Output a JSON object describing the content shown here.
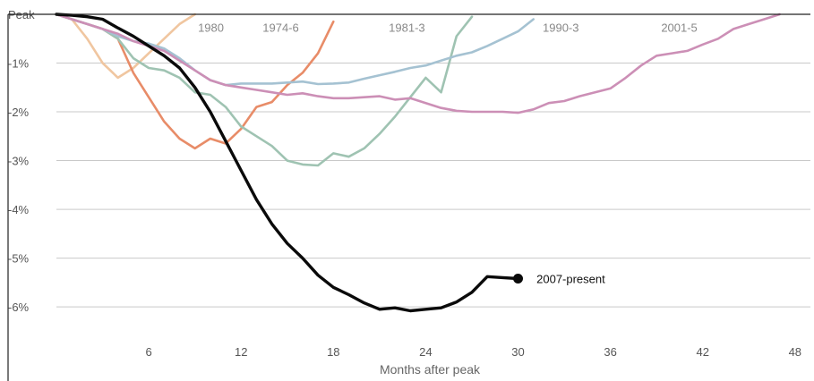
{
  "chart_data": {
    "type": "line",
    "title": "",
    "xlabel": "Months after peak",
    "ylabel": "",
    "xlim": [
      0,
      49
    ],
    "ylim": [
      -6.75,
      0
    ],
    "grid": true,
    "x_ticks": [
      {
        "value": 6,
        "label": "6"
      },
      {
        "value": 12,
        "label": "12"
      },
      {
        "value": 18,
        "label": "18"
      },
      {
        "value": 24,
        "label": "24"
      },
      {
        "value": 30,
        "label": "30"
      },
      {
        "value": 36,
        "label": "36"
      },
      {
        "value": 42,
        "label": "42"
      },
      {
        "value": 48,
        "label": "48"
      }
    ],
    "y_ticks": [
      {
        "value": 0,
        "label": "Peak"
      },
      {
        "value": -1,
        "label": "-1%"
      },
      {
        "value": -2,
        "label": "-2%"
      },
      {
        "value": -3,
        "label": "-3%"
      },
      {
        "value": -4,
        "label": "-4%"
      },
      {
        "value": -5,
        "label": "-5%"
      },
      {
        "value": -6,
        "label": "-6%"
      }
    ],
    "series": [
      {
        "name": "1980",
        "color": "#f0c6a0",
        "x": [
          0,
          1,
          2,
          3,
          4,
          5,
          6,
          7,
          8,
          9
        ],
        "y": [
          0,
          -0.1,
          -0.5,
          -1.0,
          -1.3,
          -1.1,
          -0.8,
          -0.5,
          -0.2,
          0.0
        ]
      },
      {
        "name": "1974-6",
        "color": "#e88c68",
        "x": [
          0,
          1,
          2,
          3,
          4,
          5,
          6,
          7,
          8,
          9,
          10,
          11,
          12,
          13,
          14,
          15,
          16,
          17,
          18
        ],
        "y": [
          0,
          -0.1,
          -0.2,
          -0.3,
          -0.5,
          -1.2,
          -1.7,
          -2.2,
          -2.55,
          -2.75,
          -2.55,
          -2.65,
          -2.35,
          -1.9,
          -1.8,
          -1.45,
          -1.2,
          -0.8,
          -0.15
        ]
      },
      {
        "name": "1981-3",
        "color": "#9fc3b2",
        "x": [
          0,
          1,
          2,
          3,
          4,
          5,
          6,
          7,
          8,
          9,
          10,
          11,
          12,
          13,
          14,
          15,
          16,
          17,
          18,
          19,
          20,
          21,
          22,
          23,
          24,
          25,
          26,
          27
        ],
        "y": [
          0,
          -0.1,
          -0.2,
          -0.3,
          -0.5,
          -0.9,
          -1.1,
          -1.15,
          -1.3,
          -1.6,
          -1.65,
          -1.9,
          -2.3,
          -2.5,
          -2.7,
          -3.0,
          -3.08,
          -3.1,
          -2.85,
          -2.92,
          -2.75,
          -2.45,
          -2.1,
          -1.7,
          -1.3,
          -1.6,
          -0.45,
          -0.05
        ]
      },
      {
        "name": "1990-3",
        "color": "#a5c2d2",
        "x": [
          0,
          1,
          2,
          3,
          4,
          5,
          6,
          7,
          8,
          9,
          10,
          11,
          12,
          13,
          14,
          15,
          16,
          17,
          18,
          19,
          20,
          21,
          22,
          23,
          24,
          25,
          26,
          27,
          28,
          29,
          30,
          31
        ],
        "y": [
          0,
          -0.1,
          -0.2,
          -0.3,
          -0.45,
          -0.55,
          -0.6,
          -0.7,
          -0.9,
          -1.15,
          -1.35,
          -1.45,
          -1.42,
          -1.42,
          -1.42,
          -1.4,
          -1.38,
          -1.43,
          -1.42,
          -1.4,
          -1.32,
          -1.25,
          -1.18,
          -1.1,
          -1.05,
          -0.95,
          -0.85,
          -0.78,
          -0.65,
          -0.5,
          -0.35,
          -0.1
        ]
      },
      {
        "name": "2001-5",
        "color": "#cc8fb6",
        "x": [
          0,
          1,
          2,
          3,
          4,
          5,
          6,
          7,
          8,
          9,
          10,
          11,
          12,
          13,
          14,
          15,
          16,
          17,
          18,
          19,
          20,
          21,
          22,
          23,
          24,
          25,
          26,
          27,
          28,
          29,
          30,
          31,
          32,
          33,
          34,
          35,
          36,
          37,
          38,
          39,
          40,
          41,
          42,
          43,
          44,
          45,
          46,
          47
        ],
        "y": [
          0,
          -0.1,
          -0.2,
          -0.3,
          -0.4,
          -0.55,
          -0.65,
          -0.75,
          -0.95,
          -1.15,
          -1.35,
          -1.45,
          -1.5,
          -1.55,
          -1.6,
          -1.65,
          -1.62,
          -1.68,
          -1.72,
          -1.72,
          -1.7,
          -1.68,
          -1.75,
          -1.72,
          -1.82,
          -1.92,
          -1.98,
          -2.0,
          -2.0,
          -2.0,
          -2.02,
          -1.95,
          -1.82,
          -1.78,
          -1.68,
          -1.6,
          -1.52,
          -1.3,
          -1.05,
          -0.85,
          -0.8,
          -0.75,
          -0.62,
          -0.5,
          -0.3,
          -0.2,
          -0.1,
          0.0
        ]
      },
      {
        "name": "2007-present",
        "color": "#0a0a0a",
        "x": [
          0,
          1,
          2,
          3,
          4,
          5,
          6,
          7,
          8,
          9,
          10,
          11,
          12,
          13,
          14,
          15,
          16,
          17,
          18,
          19,
          20,
          21,
          22,
          23,
          24,
          25,
          26,
          27,
          28,
          29,
          30
        ],
        "y": [
          0,
          -0.02,
          -0.05,
          -0.1,
          -0.28,
          -0.45,
          -0.65,
          -0.85,
          -1.1,
          -1.5,
          -2.0,
          -2.6,
          -3.2,
          -3.8,
          -4.3,
          -4.7,
          -5.0,
          -5.35,
          -5.6,
          -5.75,
          -5.92,
          -6.05,
          -6.02,
          -6.08,
          -6.05,
          -6.02,
          -5.9,
          -5.7,
          -5.38,
          -5.4,
          -5.42
        ]
      }
    ],
    "annotations": [
      {
        "text": "1980",
        "series": "1980",
        "x": 9.2,
        "y": -0.27
      },
      {
        "text": "1974-6",
        "series": "1974-6",
        "x": 13.4,
        "y": -0.27
      },
      {
        "text": "1981-3",
        "series": "1981-3",
        "x": 21.6,
        "y": -0.27
      },
      {
        "text": "1990-3",
        "series": "1990-3",
        "x": 31.6,
        "y": -0.27
      },
      {
        "text": "2001-5",
        "series": "2001-5",
        "x": 39.3,
        "y": -0.27
      },
      {
        "text": "2007-present",
        "series": "2007-present",
        "x": 31.2,
        "y": -5.42
      }
    ],
    "end_marker": {
      "series": "2007-present",
      "x": 30,
      "y": -5.42
    }
  }
}
